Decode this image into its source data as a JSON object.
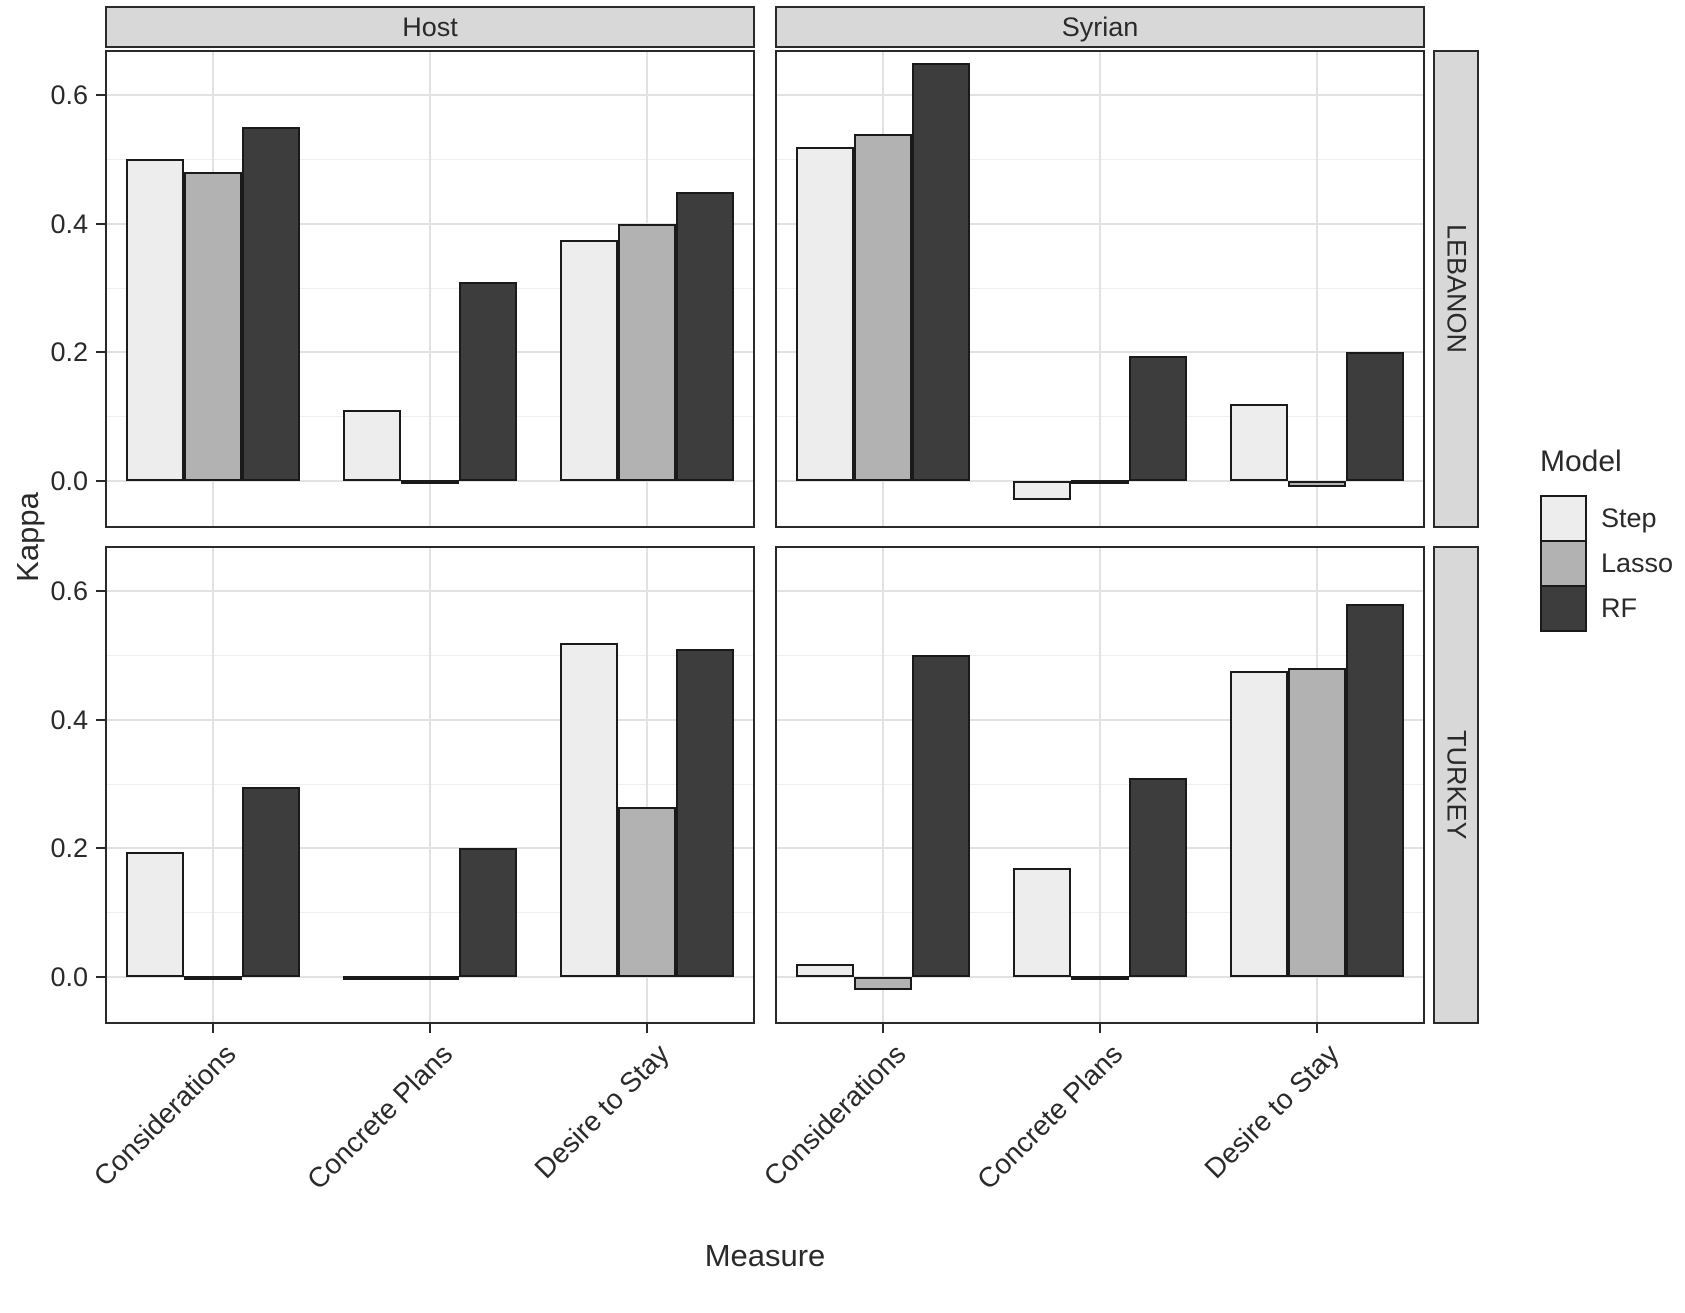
{
  "chart_data": {
    "type": "bar",
    "title": "",
    "xlabel": "Measure",
    "ylabel": "Kappa",
    "legend_title": "Model",
    "legend_position": "right",
    "facet_cols": [
      "Host",
      "Syrian"
    ],
    "facet_rows": [
      "LEBANON",
      "TURKEY"
    ],
    "categories": [
      "Considerations",
      "Concrete Plans",
      "Desire to Stay"
    ],
    "series": [
      {
        "name": "Step",
        "color": "#ededed"
      },
      {
        "name": "Lasso",
        "color": "#b2b2b2"
      },
      {
        "name": "RF",
        "color": "#3d3d3d"
      }
    ],
    "bar_outline_color": "#1a1a1a",
    "ylim": [
      -0.073,
      0.67
    ],
    "yticks": [
      0.0,
      0.2,
      0.4,
      0.6
    ],
    "yticks_minor": [
      0.1,
      0.3,
      0.5
    ],
    "x_tick_angle": 45,
    "grid": true,
    "panels": [
      {
        "facet_col": "Host",
        "facet_row": "LEBANON",
        "values": [
          [
            0.5,
            0.48,
            0.55
          ],
          [
            0.11,
            0.0,
            0.31
          ],
          [
            0.375,
            0.4,
            0.45
          ]
        ]
      },
      {
        "facet_col": "Syrian",
        "facet_row": "LEBANON",
        "values": [
          [
            0.52,
            0.54,
            0.65
          ],
          [
            -0.03,
            0.0,
            0.195
          ],
          [
            0.12,
            -0.01,
            0.2
          ]
        ]
      },
      {
        "facet_col": "Host",
        "facet_row": "TURKEY",
        "values": [
          [
            0.195,
            0.0,
            0.295
          ],
          [
            0.0,
            0.0,
            0.2
          ],
          [
            0.52,
            0.265,
            0.51
          ]
        ]
      },
      {
        "facet_col": "Syrian",
        "facet_row": "TURKEY",
        "values": [
          [
            0.02,
            -0.02,
            0.5
          ],
          [
            0.17,
            0.0,
            0.31
          ],
          [
            0.475,
            0.48,
            0.58
          ]
        ]
      }
    ]
  },
  "styles": {
    "strip_bg": "#d8d8d8",
    "panel_border": "#2a2a2a",
    "grid_major": "#e2e2e2",
    "grid_minor": "#efefef",
    "text_color": "#2a2a2a"
  }
}
